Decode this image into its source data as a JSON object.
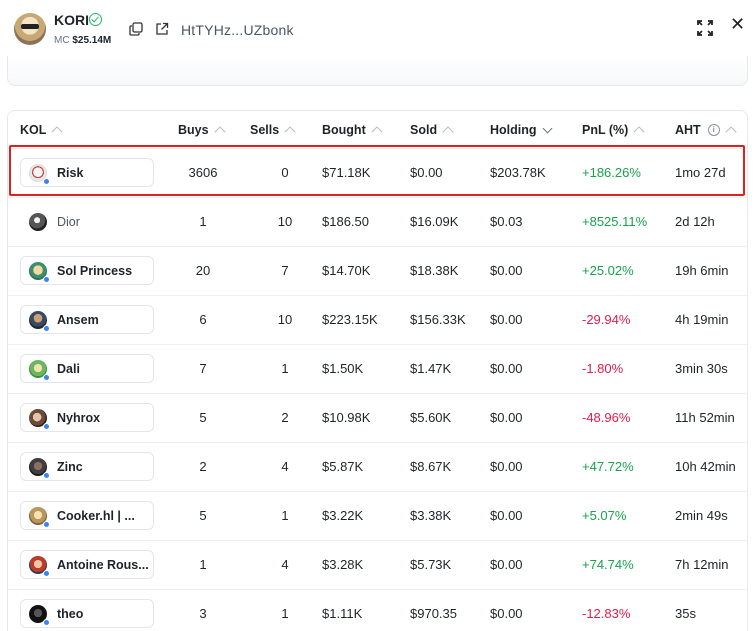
{
  "token": {
    "name": "KORI",
    "mc_label": "MC",
    "mc_value": "$25.14M",
    "address": "HtTYHz...UZbonk"
  },
  "table": {
    "headers": [
      "KOL",
      "Buys",
      "Sells",
      "Bought",
      "Sold",
      "Holding",
      "PnL (%)",
      "AHT"
    ],
    "rows": [
      {
        "name": "Risk",
        "buys": "3606",
        "sells": "0",
        "bought": "$71.18K",
        "sold": "$0.00",
        "holding": "$203.78K",
        "pnl": "+186.26%",
        "aht": "1mo 27d"
      },
      {
        "name": "Dior",
        "buys": "1",
        "sells": "10",
        "bought": "$186.50",
        "sold": "$16.09K",
        "holding": "$0.03",
        "pnl": "+8525.11%",
        "aht": "2d 12h"
      },
      {
        "name": "Sol Princess",
        "buys": "20",
        "sells": "7",
        "bought": "$14.70K",
        "sold": "$18.38K",
        "holding": "$0.00",
        "pnl": "+25.02%",
        "aht": "19h 6min"
      },
      {
        "name": "Ansem",
        "buys": "6",
        "sells": "10",
        "bought": "$223.15K",
        "sold": "$156.33K",
        "holding": "$0.00",
        "pnl": "-29.94%",
        "aht": "4h 19min"
      },
      {
        "name": "Dali",
        "buys": "7",
        "sells": "1",
        "bought": "$1.50K",
        "sold": "$1.47K",
        "holding": "$0.00",
        "pnl": "-1.80%",
        "aht": "3min 30s"
      },
      {
        "name": "Nyhrox",
        "buys": "5",
        "sells": "2",
        "bought": "$10.98K",
        "sold": "$5.60K",
        "holding": "$0.00",
        "pnl": "-48.96%",
        "aht": "11h 52min"
      },
      {
        "name": "Zinc",
        "buys": "2",
        "sells": "4",
        "bought": "$5.87K",
        "sold": "$8.67K",
        "holding": "$0.00",
        "pnl": "+47.72%",
        "aht": "10h 42min"
      },
      {
        "name": "Cooker.hl | ...",
        "buys": "5",
        "sells": "1",
        "bought": "$3.22K",
        "sold": "$3.38K",
        "holding": "$0.00",
        "pnl": "+5.07%",
        "aht": "2min 49s"
      },
      {
        "name": "Antoine Rous...",
        "buys": "1",
        "sells": "4",
        "bought": "$3.28K",
        "sold": "$5.73K",
        "holding": "$0.00",
        "pnl": "+74.74%",
        "aht": "7h 12min"
      },
      {
        "name": "theo",
        "buys": "3",
        "sells": "1",
        "bought": "$1.11K",
        "sold": "$970.35",
        "holding": "$0.00",
        "pnl": "-12.83%",
        "aht": "35s"
      }
    ]
  },
  "colors": {
    "positive": "#16a34a",
    "negative": "#e11d48",
    "highlight": "#e0201c",
    "online": "#3b82f6"
  }
}
